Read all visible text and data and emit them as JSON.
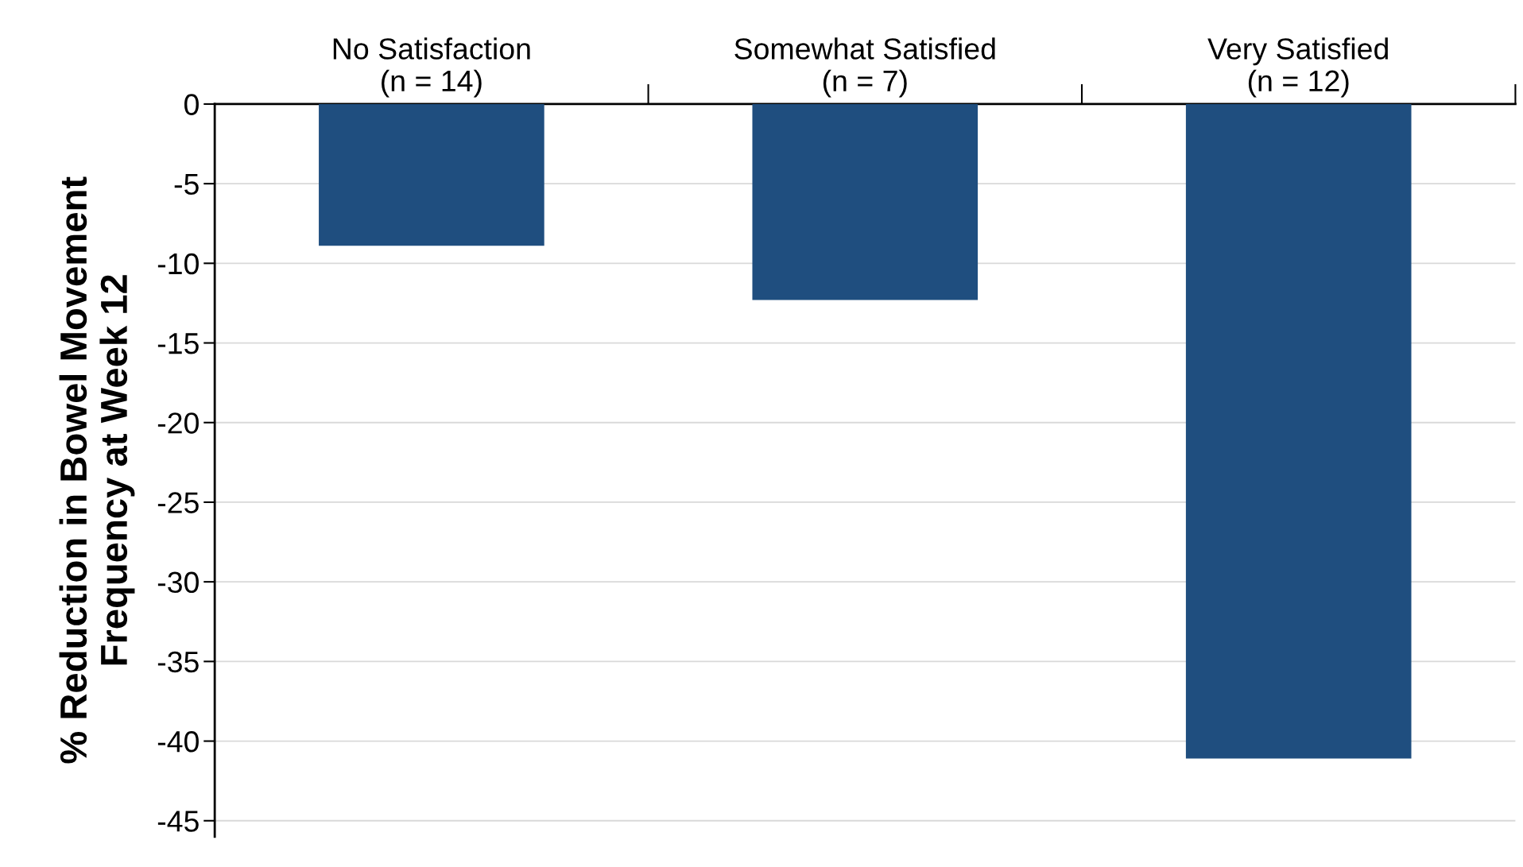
{
  "chart_data": {
    "type": "bar",
    "ylabel": "% Reduction in Bowel Movement\nFrequency at Week 12",
    "categories": [
      "No Satisfaction\n(n = 14)",
      "Somewhat Satisfied\n(n = 7)",
      "Very Satisfied\n(n = 12)"
    ],
    "values": [
      -8.9,
      -12.3,
      -41.1
    ],
    "color": "#1f4e7f",
    "ylim": [
      -46,
      0
    ],
    "yticks": [
      0,
      -5,
      -10,
      -15,
      -20,
      -25,
      -30,
      -35,
      -40,
      -45
    ],
    "grid": "y"
  }
}
